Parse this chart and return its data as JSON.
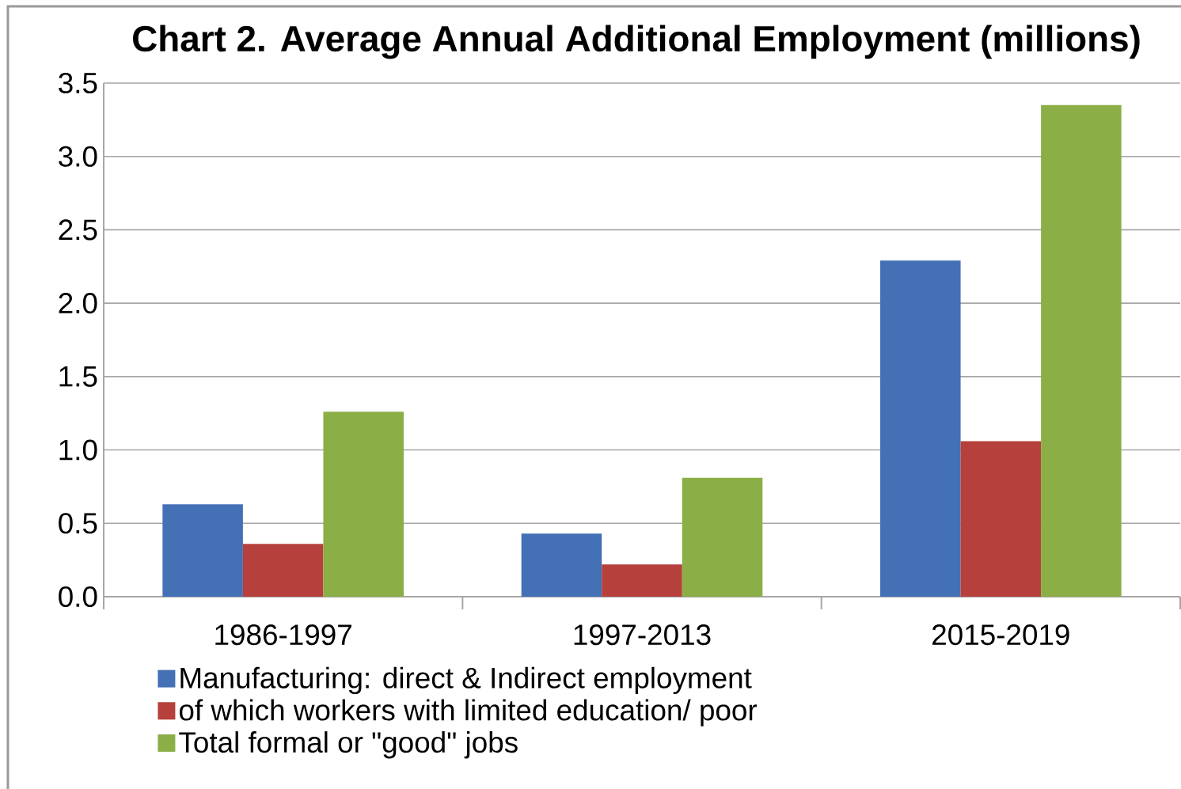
{
  "chart_data": {
    "type": "bar",
    "title": "Chart 2.  Average Annual Additional Employment  (millions)",
    "categories": [
      "1986-1997",
      "1997-2013",
      "2015-2019"
    ],
    "series": [
      {
        "name": "Manufacturing: direct & Indirect employment",
        "color": "#4470b5",
        "values": [
          0.63,
          0.43,
          2.29
        ]
      },
      {
        "name": "of which workers with limited education/ poor",
        "color": "#b5403c",
        "values": [
          0.36,
          0.22,
          1.06
        ]
      },
      {
        "name": "Total formal or \"good\" jobs",
        "color": "#8bae46",
        "values": [
          1.26,
          0.81,
          3.35
        ]
      }
    ],
    "ylim": [
      0,
      3.5
    ],
    "yticks": [
      {
        "value": 0,
        "label": "0.0"
      },
      {
        "value": 0.5,
        "label": "0.5"
      },
      {
        "value": 1,
        "label": "1.0"
      },
      {
        "value": 1.5,
        "label": "1.5"
      },
      {
        "value": 2,
        "label": "2.0"
      },
      {
        "value": 2.5,
        "label": "2.5"
      },
      {
        "value": 3,
        "label": "3.0"
      },
      {
        "value": 3.5,
        "label": "3.5"
      }
    ],
    "grid": "y",
    "legend": "bottom"
  }
}
